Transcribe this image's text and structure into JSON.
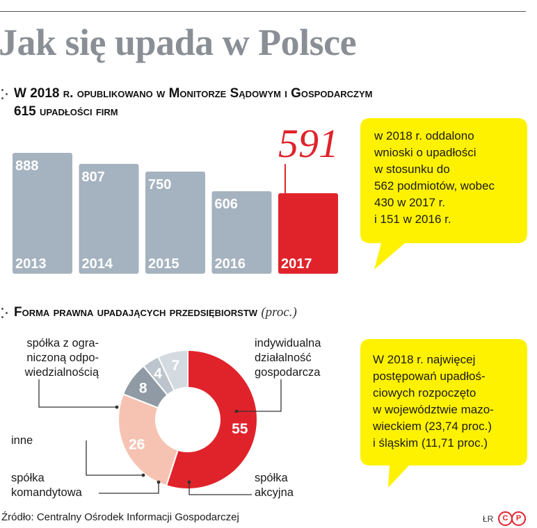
{
  "title": "Jak się upada w Polsce",
  "section1": {
    "heading_line1": "W 2018 r. opublikowano w Monitorze Sądowym i Gospodarczym",
    "heading_line2": "615 upadłości firm"
  },
  "section2": {
    "heading": "Forma prawna upadających przedsiębiorstw",
    "heading_note": "(proc.)"
  },
  "callout1": {
    "text": "w 2018 r. oddalono\nwnioski o upadłości\nw stosunku do\n562 podmiotów, wobec\n430 w 2017 r.\ni 151 w 2016 r."
  },
  "callout2": {
    "text": "W 2018 r. najwięcej\npostępowań upadłoś-\nciowych rozpoczęto\nw województwie mazo-\nwieckiem (23,74 proc.)\ni śląskim (11,71 proc.)"
  },
  "donut_labels": {
    "spzoo": "spółka z ogra-\nniczoną odpo-\nwiedzialnością",
    "indywidualna": "indywidualna\ndziałalność\ngospodarcza",
    "inne": "inne",
    "komandytowa": "spółka\nkomandytowa",
    "akcyjna": "spółka\nakcyjna"
  },
  "source": "Źródło: Centralny Ośrodek Informacji Gospodarczej",
  "credit": "ŁR",
  "colors": {
    "bar_grey": "#a5b2bf",
    "highlight_red": "#e0232b",
    "callout_yellow": "#fff200",
    "title_grey": "#8a8f96",
    "slice_spzoo": "#e0232b",
    "slice_indywidualna": "#f6c3b3",
    "slice_akcyjna": "#8f9aa4",
    "slice_komandytowa": "#bcc5cd",
    "slice_inne": "#d3dae0"
  },
  "chart_data": [
    {
      "type": "bar",
      "categories": [
        "2013",
        "2014",
        "2015",
        "2016",
        "2017"
      ],
      "values": [
        888,
        807,
        750,
        606,
        591
      ],
      "value_labels": [
        "888",
        "807",
        "750",
        "606",
        "591"
      ],
      "highlight": "2017",
      "title": "",
      "xlabel": "",
      "ylabel": "",
      "grid": false
    },
    {
      "type": "pie",
      "variant": "donut",
      "labels": [
        "spółka z ograniczoną odpowiedzialnością",
        "indywidualna działalność gospodarcza",
        "spółka akcyjna",
        "spółka komandytowa",
        "inne"
      ],
      "values": [
        55,
        26,
        8,
        4,
        7
      ],
      "value_labels": [
        "55",
        "26",
        "8",
        "4",
        "7"
      ],
      "unit": "proc."
    }
  ]
}
